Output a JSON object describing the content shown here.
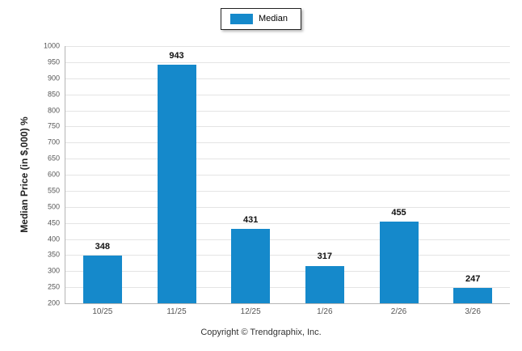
{
  "legend": {
    "label": "Median",
    "swatch_color": "#1589CB"
  },
  "footer": {
    "text": "Copyright © Trendgraphix, Inc."
  },
  "chart_data": {
    "type": "bar",
    "categories": [
      "10/25",
      "11/25",
      "12/25",
      "1/26",
      "2/26",
      "3/26"
    ],
    "values": [
      348,
      943,
      431,
      317,
      455,
      247
    ],
    "title": "",
    "xlabel": "",
    "ylabel": "Median Price (in $,000) %",
    "ylim": [
      200,
      1000
    ],
    "ytick_step": 50,
    "bar_color": "#1589CB",
    "grid": true,
    "legend_position": "top-center"
  }
}
